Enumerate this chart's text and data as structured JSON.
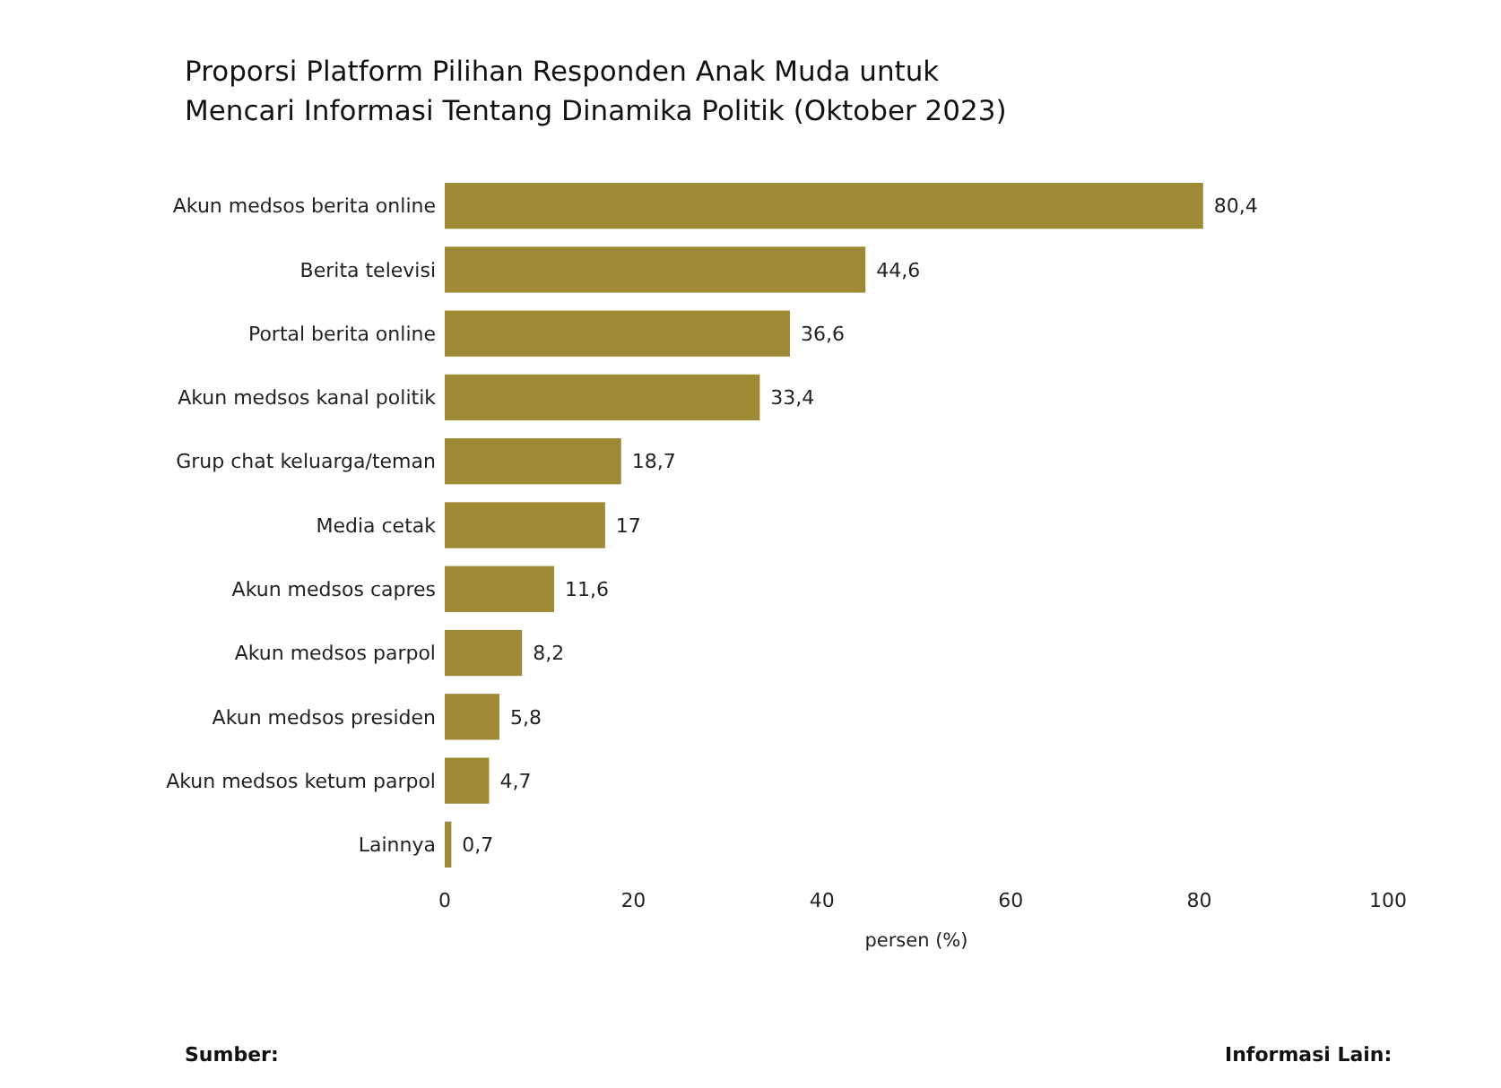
{
  "chart_data": {
    "type": "bar",
    "orientation": "horizontal",
    "title": "Proporsi Platform Pilihan Responden Anak Muda untuk\nMencari Informasi Tentang Dinamika Politik (Oktober 2023)",
    "xlabel": "persen (%)",
    "categories": [
      "Akun medsos berita online",
      "Berita televisi",
      "Portal berita online",
      "Akun medsos kanal politik",
      "Grup chat keluarga/teman",
      "Media cetak",
      "Akun medsos capres",
      "Akun medsos parpol",
      "Akun medsos presiden",
      "Akun medsos ketum parpol",
      "Lainnya"
    ],
    "values": [
      80.4,
      44.6,
      36.6,
      33.4,
      18.7,
      17,
      11.6,
      8.2,
      5.8,
      4.7,
      0.7
    ],
    "value_labels": [
      "80,4",
      "44,6",
      "36,6",
      "33,4",
      "18,7",
      "17",
      "11,6",
      "8,2",
      "5,8",
      "4,7",
      "0,7"
    ],
    "color": "#9e8a35",
    "xlim": [
      0,
      100
    ],
    "xticks": [
      0,
      20,
      40,
      60,
      80,
      100
    ],
    "annotations": [
      "Sumber:",
      "Informasi Lain:"
    ]
  }
}
